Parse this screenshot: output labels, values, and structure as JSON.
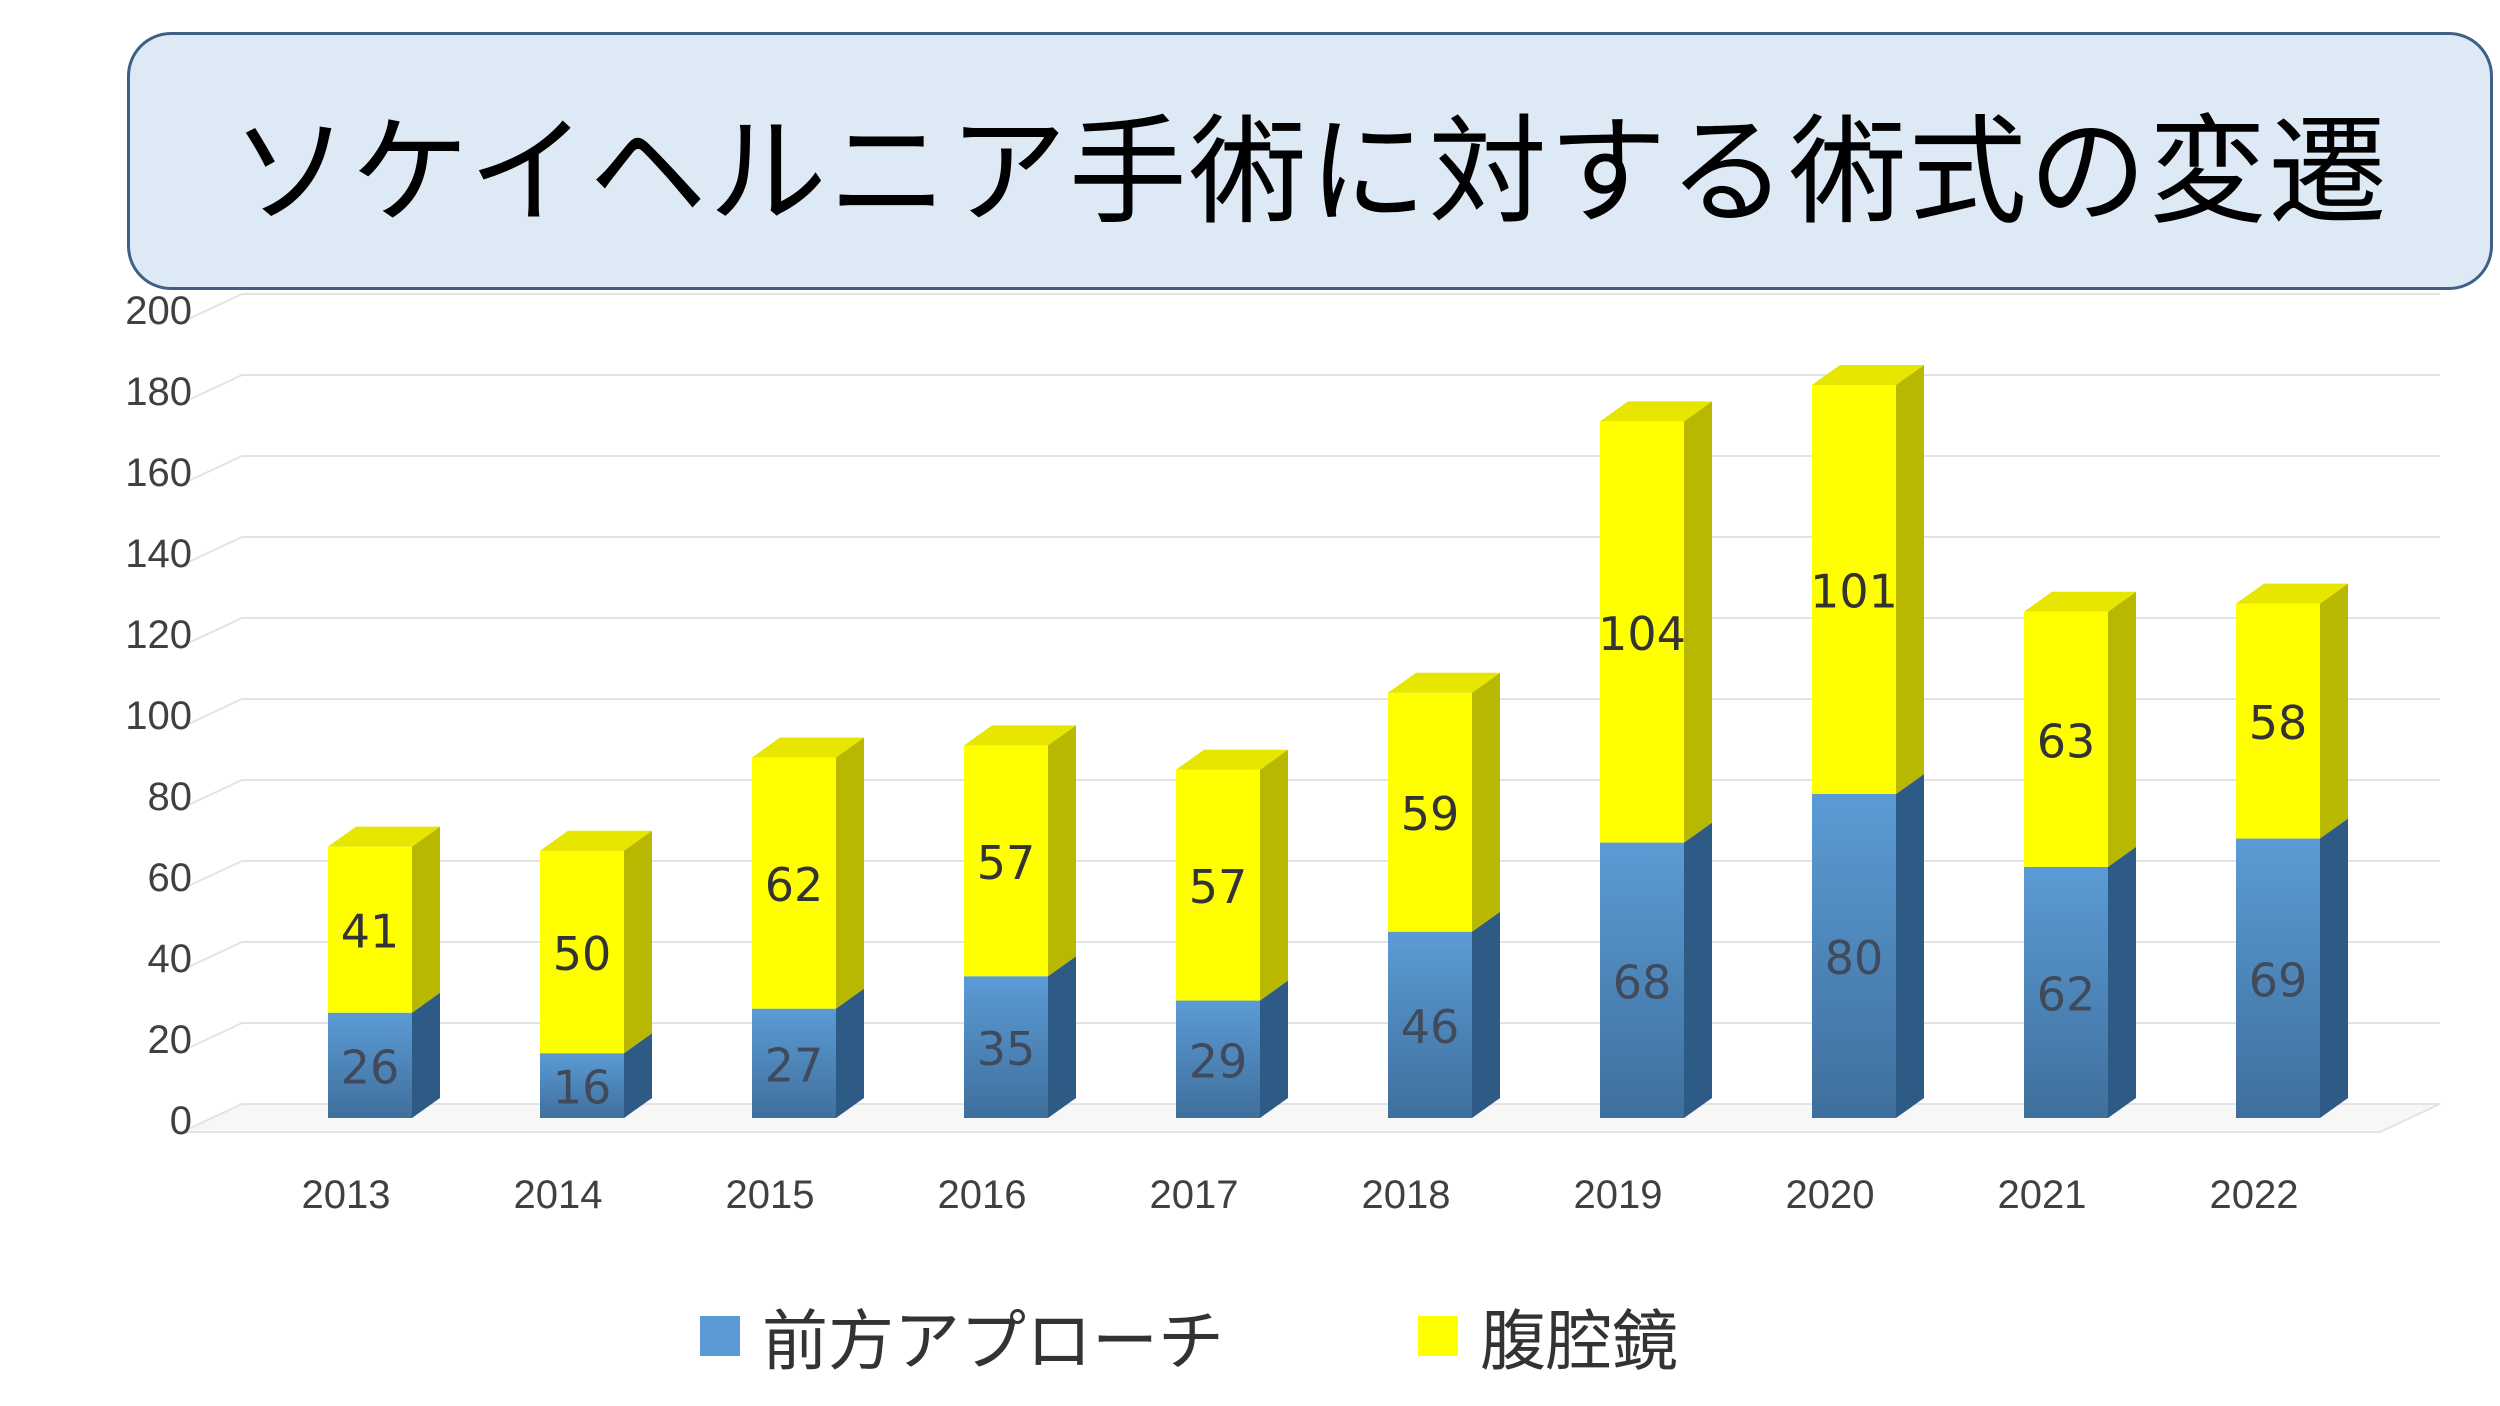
{
  "title": "ソケイヘルニア手術に対する術式の変遷",
  "colors": {
    "anterior": "#5b9bd5",
    "anterior_dark": "#3f6f9c",
    "anterior_side": "#2e5b85",
    "laparoscopic": "#ffff00",
    "laparoscopic_top": "#e6e600",
    "laparoscopic_side": "#b8b800",
    "grid": "#e3e3e3",
    "axis_text": "#404040",
    "title_box_fill": "#dde9f5",
    "title_box_border": "#3f5f86"
  },
  "chart_data": {
    "type": "bar",
    "stacked": true,
    "style": "3d-column",
    "categories": [
      "2013",
      "2014",
      "2015",
      "2016",
      "2017",
      "2018",
      "2019",
      "2020",
      "2021",
      "2022"
    ],
    "series": [
      {
        "name": "前方アプローチ",
        "values": [
          26,
          16,
          27,
          35,
          29,
          46,
          68,
          80,
          62,
          69
        ]
      },
      {
        "name": "腹腔鏡",
        "values": [
          41,
          50,
          62,
          57,
          57,
          59,
          104,
          101,
          63,
          58
        ]
      }
    ],
    "ylim": [
      0,
      200
    ],
    "yticks": [
      "0",
      "20",
      "40",
      "60",
      "80",
      "100",
      "120",
      "140",
      "160",
      "180",
      "200"
    ],
    "grid": true,
    "data_labels": true,
    "legend_position": "bottom"
  }
}
